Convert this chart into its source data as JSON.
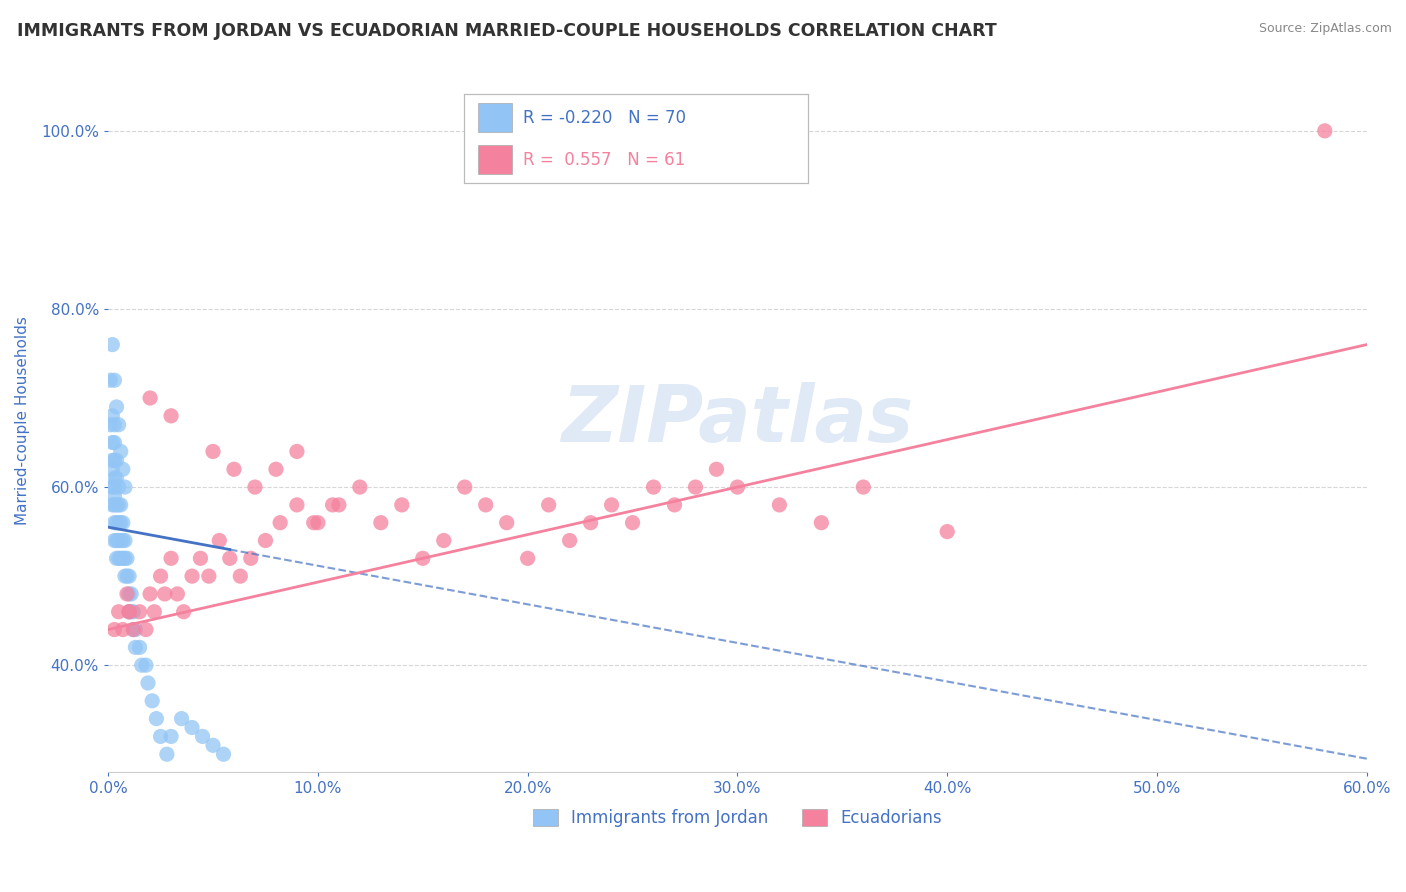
{
  "title": "IMMIGRANTS FROM JORDAN VS ECUADORIAN MARRIED-COUPLE HOUSEHOLDS CORRELATION CHART",
  "source": "Source: ZipAtlas.com",
  "ylabel": "Married-couple Households",
  "x_tick_labels": [
    "0.0%",
    "10.0%",
    "20.0%",
    "30.0%",
    "40.0%",
    "50.0%",
    "60.0%"
  ],
  "y_tick_labels": [
    "40.0%",
    "60.0%",
    "80.0%",
    "100.0%"
  ],
  "xlim": [
    0.0,
    0.6
  ],
  "ylim": [
    0.28,
    1.07
  ],
  "legend_labels": [
    "Immigrants from Jordan",
    "Ecuadorians"
  ],
  "legend_R": [
    -0.22,
    0.557
  ],
  "legend_N": [
    70,
    61
  ],
  "blue_color": "#92c5f5",
  "pink_color": "#f4829e",
  "blue_line_color": "#4472c4",
  "pink_line_color": "#f4829e",
  "tick_color": "#4472c4",
  "grid_color": "#cccccc",
  "watermark_text": "ZIPatlas",
  "watermark_color": "#c8d8f0",
  "background_color": "#ffffff",
  "jordan_x": [
    0.001,
    0.001,
    0.002,
    0.002,
    0.002,
    0.002,
    0.002,
    0.002,
    0.003,
    0.003,
    0.003,
    0.003,
    0.003,
    0.003,
    0.003,
    0.003,
    0.003,
    0.004,
    0.004,
    0.004,
    0.004,
    0.004,
    0.004,
    0.005,
    0.005,
    0.005,
    0.005,
    0.005,
    0.006,
    0.006,
    0.006,
    0.006,
    0.007,
    0.007,
    0.007,
    0.008,
    0.008,
    0.008,
    0.009,
    0.009,
    0.01,
    0.01,
    0.01,
    0.011,
    0.011,
    0.012,
    0.012,
    0.013,
    0.013,
    0.015,
    0.016,
    0.018,
    0.019,
    0.021,
    0.023,
    0.025,
    0.028,
    0.03,
    0.035,
    0.04,
    0.045,
    0.05,
    0.055,
    0.002,
    0.003,
    0.004,
    0.005,
    0.006,
    0.007,
    0.008
  ],
  "jordan_y": [
    0.67,
    0.72,
    0.68,
    0.65,
    0.62,
    0.6,
    0.58,
    0.63,
    0.67,
    0.65,
    0.63,
    0.6,
    0.58,
    0.56,
    0.54,
    0.61,
    0.59,
    0.63,
    0.61,
    0.58,
    0.56,
    0.54,
    0.52,
    0.6,
    0.58,
    0.56,
    0.54,
    0.52,
    0.58,
    0.56,
    0.54,
    0.52,
    0.56,
    0.54,
    0.52,
    0.54,
    0.52,
    0.5,
    0.52,
    0.5,
    0.5,
    0.48,
    0.46,
    0.48,
    0.46,
    0.46,
    0.44,
    0.44,
    0.42,
    0.42,
    0.4,
    0.4,
    0.38,
    0.36,
    0.34,
    0.32,
    0.3,
    0.32,
    0.34,
    0.33,
    0.32,
    0.31,
    0.3,
    0.76,
    0.72,
    0.69,
    0.67,
    0.64,
    0.62,
    0.6
  ],
  "ecuador_x": [
    0.003,
    0.005,
    0.007,
    0.009,
    0.01,
    0.012,
    0.015,
    0.018,
    0.02,
    0.022,
    0.025,
    0.027,
    0.03,
    0.033,
    0.036,
    0.04,
    0.044,
    0.048,
    0.053,
    0.058,
    0.063,
    0.068,
    0.075,
    0.082,
    0.09,
    0.098,
    0.107,
    0.05,
    0.06,
    0.07,
    0.08,
    0.09,
    0.1,
    0.11,
    0.12,
    0.13,
    0.14,
    0.15,
    0.16,
    0.17,
    0.18,
    0.19,
    0.2,
    0.21,
    0.22,
    0.23,
    0.24,
    0.25,
    0.26,
    0.27,
    0.28,
    0.29,
    0.3,
    0.32,
    0.34,
    0.36,
    0.4,
    0.58,
    0.01,
    0.02,
    0.03
  ],
  "ecuador_y": [
    0.44,
    0.46,
    0.44,
    0.48,
    0.46,
    0.44,
    0.46,
    0.44,
    0.48,
    0.46,
    0.5,
    0.48,
    0.52,
    0.48,
    0.46,
    0.5,
    0.52,
    0.5,
    0.54,
    0.52,
    0.5,
    0.52,
    0.54,
    0.56,
    0.58,
    0.56,
    0.58,
    0.64,
    0.62,
    0.6,
    0.62,
    0.64,
    0.56,
    0.58,
    0.6,
    0.56,
    0.58,
    0.52,
    0.54,
    0.6,
    0.58,
    0.56,
    0.52,
    0.58,
    0.54,
    0.56,
    0.58,
    0.56,
    0.6,
    0.58,
    0.6,
    0.62,
    0.6,
    0.58,
    0.56,
    0.6,
    0.55,
    1.0,
    0.46,
    0.7,
    0.68
  ]
}
